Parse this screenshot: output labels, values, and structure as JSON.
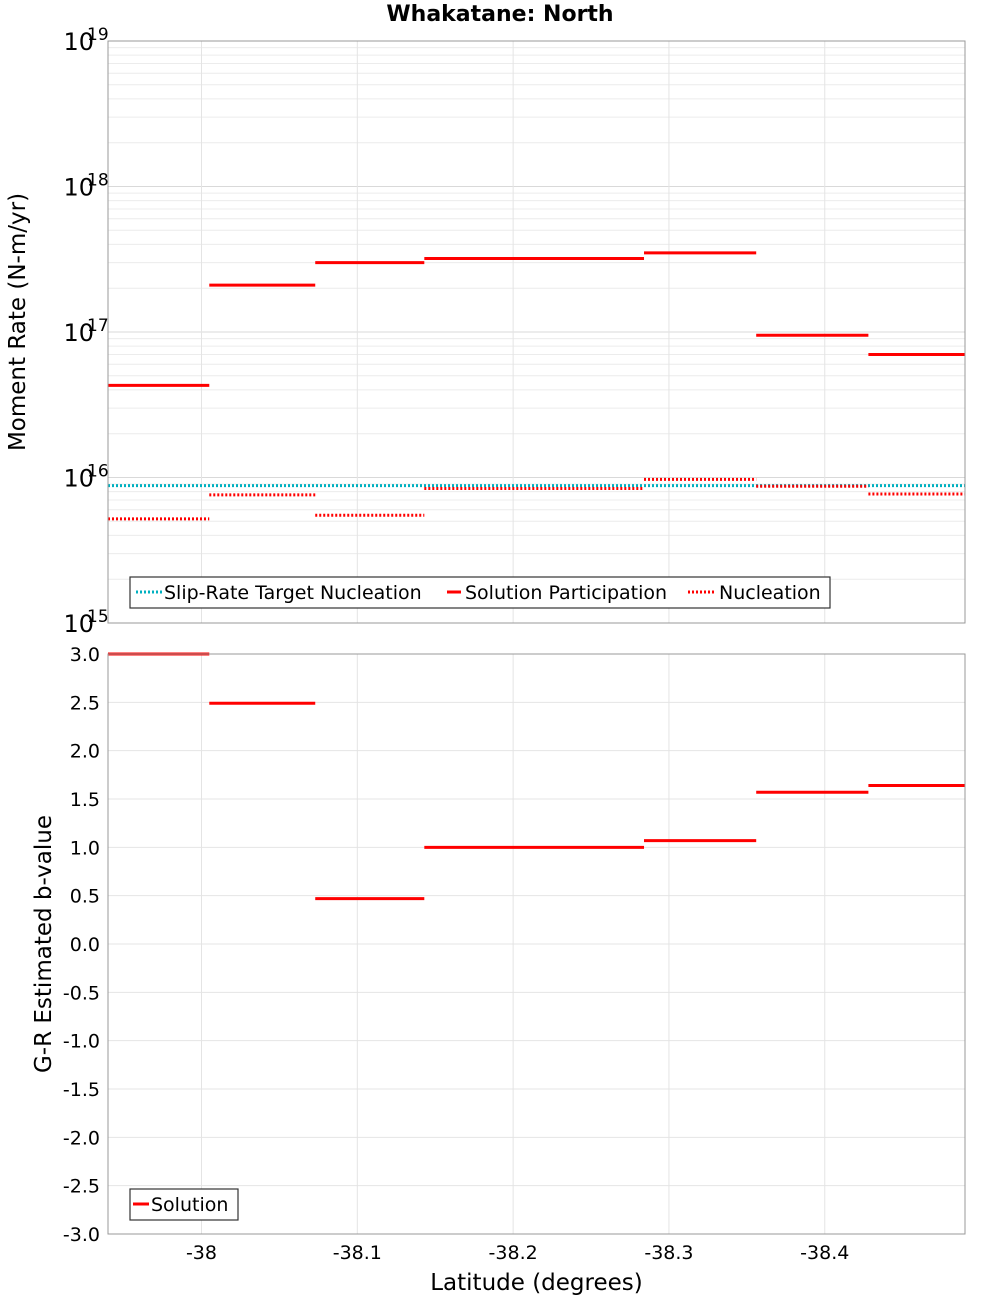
{
  "chart_data": [
    {
      "type": "line",
      "title": "Whakatane: North",
      "xlabel": "Latitude (degrees)",
      "ylabel": "Moment Rate (N-m/yr)",
      "yscale": "log",
      "ylim": [
        1000000000000000.0,
        1e+19
      ],
      "xlim": [
        -37.94,
        -38.49
      ],
      "x_reversed": true,
      "xticks": [
        "-38",
        "-38.1",
        "-38.2",
        "-38.3",
        "-38.4"
      ],
      "ytick_labels": [
        {
          "base": "10",
          "exp": "15"
        },
        {
          "base": "10",
          "exp": "16"
        },
        {
          "base": "10",
          "exp": "17"
        },
        {
          "base": "10",
          "exp": "18"
        },
        {
          "base": "10",
          "exp": "19"
        }
      ],
      "grid": true,
      "legend_position": "bottom-left",
      "series": [
        {
          "name": "Slip-Rate Target Nucleation",
          "color": "#00b0c0",
          "style": "dotted",
          "segments": [
            {
              "x0": -37.94,
              "x1": -38.49,
              "y": 8800000000000000.0
            }
          ]
        },
        {
          "name": "Solution Participation",
          "color": "#ff0000",
          "style": "solid",
          "segments": [
            {
              "x0": -37.94,
              "x1": -38.005,
              "y": 4.3e+16
            },
            {
              "x0": -38.005,
              "x1": -38.073,
              "y": 2.1e+17
            },
            {
              "x0": -38.073,
              "x1": -38.143,
              "y": 3e+17
            },
            {
              "x0": -38.143,
              "x1": -38.284,
              "y": 3.2e+17
            },
            {
              "x0": -38.284,
              "x1": -38.356,
              "y": 3.5e+17
            },
            {
              "x0": -38.356,
              "x1": -38.428,
              "y": 9.5e+16
            },
            {
              "x0": -38.428,
              "x1": -38.49,
              "y": 7e+16
            }
          ]
        },
        {
          "name": "Nucleation",
          "color": "#ff0000",
          "style": "dotted",
          "segments": [
            {
              "x0": -37.94,
              "x1": -38.005,
              "y": 5200000000000000.0
            },
            {
              "x0": -38.005,
              "x1": -38.073,
              "y": 7600000000000000.0
            },
            {
              "x0": -38.073,
              "x1": -38.143,
              "y": 5500000000000000.0
            },
            {
              "x0": -38.143,
              "x1": -38.284,
              "y": 8400000000000000.0
            },
            {
              "x0": -38.284,
              "x1": -38.356,
              "y": 9700000000000000.0
            },
            {
              "x0": -38.356,
              "x1": -38.428,
              "y": 8700000000000000.0
            },
            {
              "x0": -38.428,
              "x1": -38.49,
              "y": 7700000000000000.0
            }
          ]
        }
      ]
    },
    {
      "type": "line",
      "xlabel": "Latitude (degrees)",
      "ylabel": "G-R Estimated b-value",
      "ylim": [
        -3.0,
        3.0
      ],
      "xlim": [
        -37.94,
        -38.49
      ],
      "x_reversed": true,
      "xticks": [
        "-38",
        "-38.1",
        "-38.2",
        "-38.3",
        "-38.4"
      ],
      "yticks": [
        "-3.0",
        "-2.5",
        "-2.0",
        "-1.5",
        "-1.0",
        "-0.5",
        "0.0",
        "0.5",
        "1.0",
        "1.5",
        "2.0",
        "2.5",
        "3.0"
      ],
      "grid": true,
      "legend_position": "bottom-left",
      "series": [
        {
          "name": "Solution",
          "color": "#ff0000",
          "style": "solid",
          "segments": [
            {
              "x0": -37.94,
              "x1": -38.005,
              "y": 3.0
            },
            {
              "x0": -38.005,
              "x1": -38.073,
              "y": 2.49
            },
            {
              "x0": -38.073,
              "x1": -38.143,
              "y": 0.47
            },
            {
              "x0": -38.143,
              "x1": -38.284,
              "y": 1.0
            },
            {
              "x0": -38.284,
              "x1": -38.356,
              "y": 1.07
            },
            {
              "x0": -38.356,
              "x1": -38.428,
              "y": 1.57
            },
            {
              "x0": -38.428,
              "x1": -38.49,
              "y": 1.64
            }
          ]
        }
      ]
    }
  ]
}
